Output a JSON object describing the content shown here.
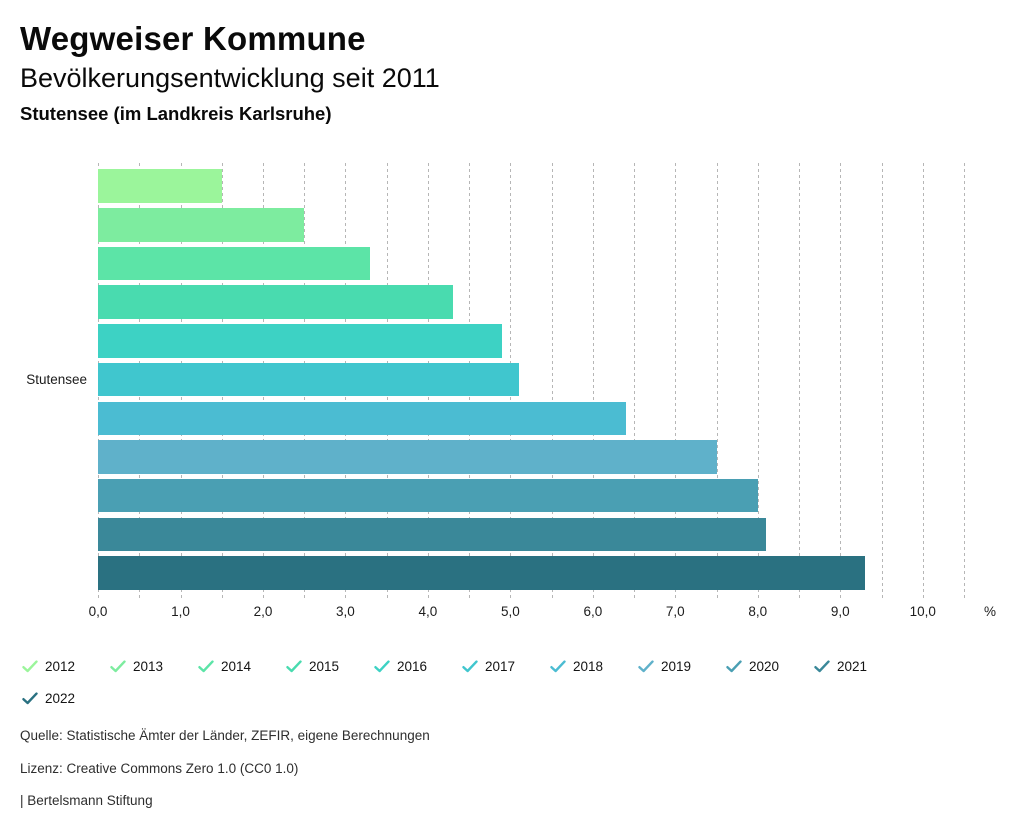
{
  "header": {
    "title": "Wegweiser Kommune",
    "subtitle": "Bevölkerungsentwicklung seit 2011",
    "location": "Stutensee (im Landkreis Karlsruhe)"
  },
  "chart_data": {
    "type": "bar",
    "orientation": "horizontal",
    "title": "Bevölkerungsentwicklung seit 2011",
    "group_label": "Stutensee",
    "categories": [
      "2012",
      "2013",
      "2014",
      "2015",
      "2016",
      "2017",
      "2018",
      "2019",
      "2020",
      "2021",
      "2022"
    ],
    "values": [
      1.5,
      2.5,
      3.3,
      4.3,
      4.9,
      5.1,
      6.4,
      7.5,
      8.0,
      8.1,
      9.3
    ],
    "colors": [
      "#9bf59b",
      "#7dec9f",
      "#5ce4a7",
      "#49dbaf",
      "#3dd2c4",
      "#40c6ce",
      "#4bbcd2",
      "#5fb1ca",
      "#4a9fb3",
      "#3a8899",
      "#2a7181"
    ],
    "xlim": [
      0,
      10.5
    ],
    "gridline_step": 0.5,
    "grid": true,
    "x_tick_values": [
      0,
      1,
      2,
      3,
      4,
      5,
      6,
      7,
      8,
      9,
      10
    ],
    "x_tick_labels": [
      "0,0",
      "1,0",
      "2,0",
      "3,0",
      "4,0",
      "5,0",
      "6,0",
      "7,0",
      "8,0",
      "9,0",
      "10,0"
    ],
    "x_unit": "%",
    "legend_position": "bottom",
    "legend_icon": "check-icon"
  },
  "footer": {
    "source": "Quelle: Statistische Ämter der Länder, ZEFIR, eigene Berechnungen",
    "license": "Lizenz: Creative Commons Zero 1.0 (CC0 1.0)",
    "attribution": "| Bertelsmann Stiftung"
  }
}
